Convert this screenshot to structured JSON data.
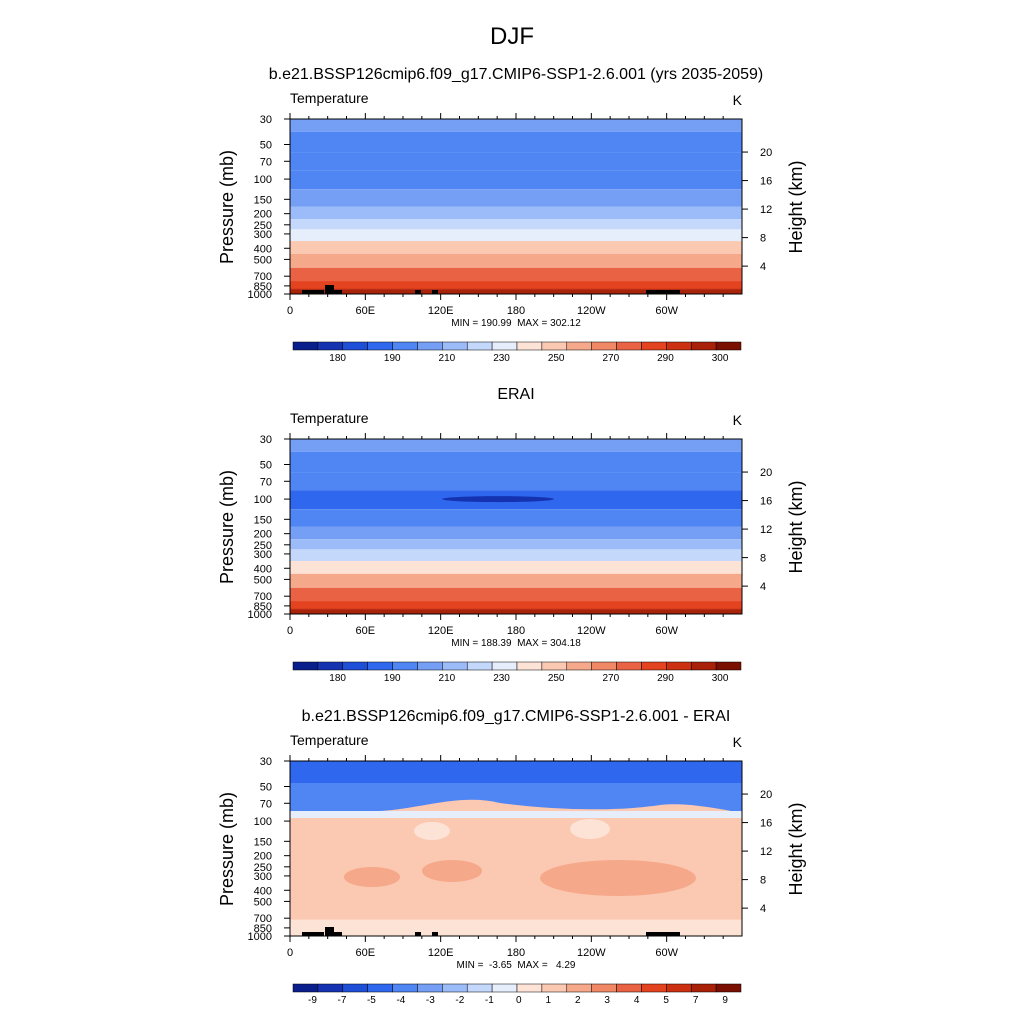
{
  "figure": {
    "title": "DJF"
  },
  "chart_data": [
    {
      "type": "heatmap",
      "title": "b.e21.BSSP126cmip6.f09_g17.CMIP6-SSP1-2.6.001 (yrs 2035-2059)",
      "left_label": "Temperature",
      "units": "K",
      "ylabel": "Pressure (mb)",
      "ylabel_right": "Height (km)",
      "x_ticks": [
        "0",
        "60E",
        "120E",
        "180",
        "120W",
        "60W"
      ],
      "y_ticks": [
        "30",
        "50",
        "70",
        "100",
        "150",
        "200",
        "250",
        "300",
        "400",
        "500",
        "700",
        "850",
        "1000"
      ],
      "y_ticks_right": [
        "20",
        "16",
        "12",
        "8",
        "4"
      ],
      "stats": "MIN = 190.99  MAX = 302.12",
      "min": 190.99,
      "max": 302.12,
      "colorbar_labels": [
        "180",
        "190",
        "210",
        "230",
        "250",
        "270",
        "290",
        "300"
      ],
      "colorbar_colors": [
        "#0a1f8c",
        "#1533b0",
        "#1f4fd6",
        "#2f68ee",
        "#4f86f3",
        "#759ff5",
        "#9bbcf8",
        "#c3d8fb",
        "#e6eefc",
        "#fde3d5",
        "#fbc8b1",
        "#f6a88a",
        "#f08866",
        "#ea6244",
        "#e4431f",
        "#cc3010",
        "#a82108",
        "#7a0f02"
      ],
      "profile_by_pressure": [
        {
          "p": 30,
          "value": 210
        },
        {
          "p": 50,
          "value": 207
        },
        {
          "p": 70,
          "value": 203
        },
        {
          "p": 100,
          "value": 203
        },
        {
          "p": 150,
          "value": 210
        },
        {
          "p": 200,
          "value": 218
        },
        {
          "p": 250,
          "value": 226
        },
        {
          "p": 300,
          "value": 234
        },
        {
          "p": 400,
          "value": 249
        },
        {
          "p": 500,
          "value": 259
        },
        {
          "p": 700,
          "value": 275
        },
        {
          "p": 850,
          "value": 284
        },
        {
          "p": 1000,
          "value": 293
        }
      ]
    },
    {
      "type": "heatmap",
      "title": "ERAI",
      "left_label": "Temperature",
      "units": "K",
      "ylabel": "Pressure (mb)",
      "ylabel_right": "Height (km)",
      "x_ticks": [
        "0",
        "60E",
        "120E",
        "180",
        "120W",
        "60W"
      ],
      "y_ticks": [
        "30",
        "50",
        "70",
        "100",
        "150",
        "200",
        "250",
        "300",
        "400",
        "500",
        "700",
        "850",
        "1000"
      ],
      "y_ticks_right": [
        "20",
        "16",
        "12",
        "8",
        "4"
      ],
      "stats": "MIN = 188.39  MAX = 304.18",
      "min": 188.39,
      "max": 304.18,
      "colorbar_labels": [
        "180",
        "190",
        "210",
        "230",
        "250",
        "270",
        "290",
        "300"
      ],
      "colorbar_colors": [
        "#0a1f8c",
        "#1533b0",
        "#1f4fd6",
        "#2f68ee",
        "#4f86f3",
        "#759ff5",
        "#9bbcf8",
        "#c3d8fb",
        "#e6eefc",
        "#fde3d5",
        "#fbc8b1",
        "#f6a88a",
        "#f08866",
        "#ea6244",
        "#e4431f",
        "#cc3010",
        "#a82108",
        "#7a0f02"
      ],
      "profile_by_pressure": [
        {
          "p": 30,
          "value": 210
        },
        {
          "p": 50,
          "value": 206
        },
        {
          "p": 70,
          "value": 202
        },
        {
          "p": 100,
          "value": 200
        },
        {
          "p": 150,
          "value": 208
        },
        {
          "p": 200,
          "value": 216
        },
        {
          "p": 250,
          "value": 224
        },
        {
          "p": 300,
          "value": 232
        },
        {
          "p": 400,
          "value": 247
        },
        {
          "p": 500,
          "value": 257
        },
        {
          "p": 700,
          "value": 273
        },
        {
          "p": 850,
          "value": 283
        },
        {
          "p": 1000,
          "value": 292
        }
      ]
    },
    {
      "type": "heatmap",
      "title": "b.e21.BSSP126cmip6.f09_g17.CMIP6-SSP1-2.6.001 - ERAI",
      "left_label": "Temperature",
      "units": "K",
      "ylabel": "Pressure (mb)",
      "ylabel_right": "Height (km)",
      "x_ticks": [
        "0",
        "60E",
        "120E",
        "180",
        "120W",
        "60W"
      ],
      "y_ticks": [
        "30",
        "50",
        "70",
        "100",
        "150",
        "200",
        "250",
        "300",
        "400",
        "500",
        "700",
        "850",
        "1000"
      ],
      "y_ticks_right": [
        "20",
        "16",
        "12",
        "8",
        "4"
      ],
      "stats": "MIN =  -3.65  MAX =   4.29",
      "min": -3.65,
      "max": 4.29,
      "colorbar_labels": [
        "-9",
        "-7",
        "-5",
        "-4",
        "-3",
        "-2",
        "-1",
        "0",
        "1",
        "2",
        "3",
        "4",
        "5",
        "7",
        "9"
      ],
      "colorbar_colors": [
        "#0a1f8c",
        "#1533b0",
        "#1f4fd6",
        "#2f68ee",
        "#4f86f3",
        "#759ff5",
        "#9bbcf8",
        "#c3d8fb",
        "#e6eefc",
        "#fde3d5",
        "#fbc8b1",
        "#f6a88a",
        "#f08866",
        "#ea6244",
        "#e4431f",
        "#cc3010",
        "#a82108",
        "#7a0f02"
      ]
    }
  ]
}
